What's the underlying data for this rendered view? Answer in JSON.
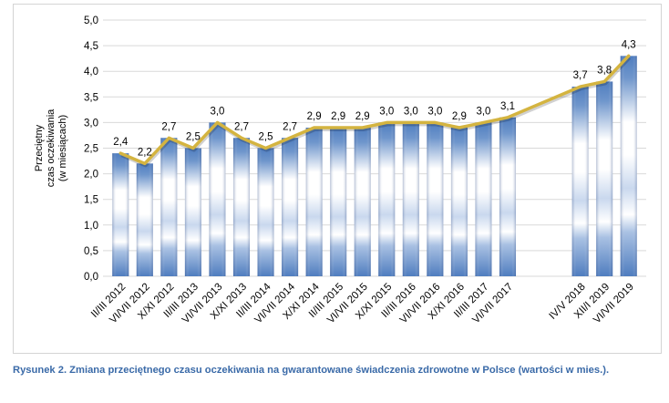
{
  "chart_data": {
    "type": "bar",
    "ylabel": "Przeciętny czas oczekiwania (w miesiącach)",
    "ylabel_lines": [
      "Przeciętny",
      "czas oczekiwania",
      "(w miesiącach)"
    ],
    "ylim": [
      0,
      5
    ],
    "yticks": [
      "0,0",
      "0,5",
      "1,0",
      "1,5",
      "2,0",
      "2,5",
      "3,0",
      "3,5",
      "4,0",
      "4,5",
      "5,0"
    ],
    "grid": true,
    "categories": [
      "II/III 2012",
      "VI/VII 2012",
      "X/XI 2012",
      "II/III 2013",
      "VI/VII 2013",
      "X/XI 2013",
      "II/III 2014",
      "VI/VII 2014",
      "X/XI 2014",
      "II/III 2015",
      "VI/VII 2015",
      "X/XI 2015",
      "II/III 2016",
      "VI/VII 2016",
      "X/XI 2016",
      "II/III 2017",
      "VI/VII 2017",
      "",
      "",
      "IV/V 2018",
      "XII/I 2019",
      "VI/VII 2019"
    ],
    "values": [
      2.4,
      2.2,
      2.7,
      2.5,
      3.0,
      2.7,
      2.5,
      2.7,
      2.9,
      2.9,
      2.9,
      3.0,
      3.0,
      3.0,
      2.9,
      3.0,
      3.1,
      null,
      null,
      3.7,
      3.8,
      4.3
    ],
    "labels": [
      "2,4",
      "2,2",
      "2,7",
      "2,5",
      "3,0",
      "2,7",
      "2,5",
      "2,7",
      "2,9",
      "2,9",
      "2,9",
      "3,0",
      "3,0",
      "3,0",
      "2,9",
      "3,0",
      "3,1",
      "",
      "",
      "3,7",
      "3,8",
      "4,3"
    ],
    "series": [
      {
        "values": [
          2.4,
          2.2,
          2.7,
          2.5,
          3.0,
          2.7,
          2.5,
          2.7,
          2.9,
          2.9,
          2.9,
          3.0,
          3.0,
          3.0,
          2.9,
          3.0,
          3.1,
          null,
          null,
          3.7,
          3.8,
          4.3
        ]
      }
    ],
    "colors": {
      "bar_dark": "#4f7dbf",
      "bar_light": "#ffffff",
      "line": "#d4b440",
      "grid": "#d9d9d9",
      "text": "#000000"
    }
  },
  "caption": {
    "text": "Rysunek 2. Zmiana przeciętnego czasu oczekiwania na gwarantowane świadczenia zdrowotne w Polsce (wartości w mies.).",
    "color": "#3a6aa8"
  }
}
